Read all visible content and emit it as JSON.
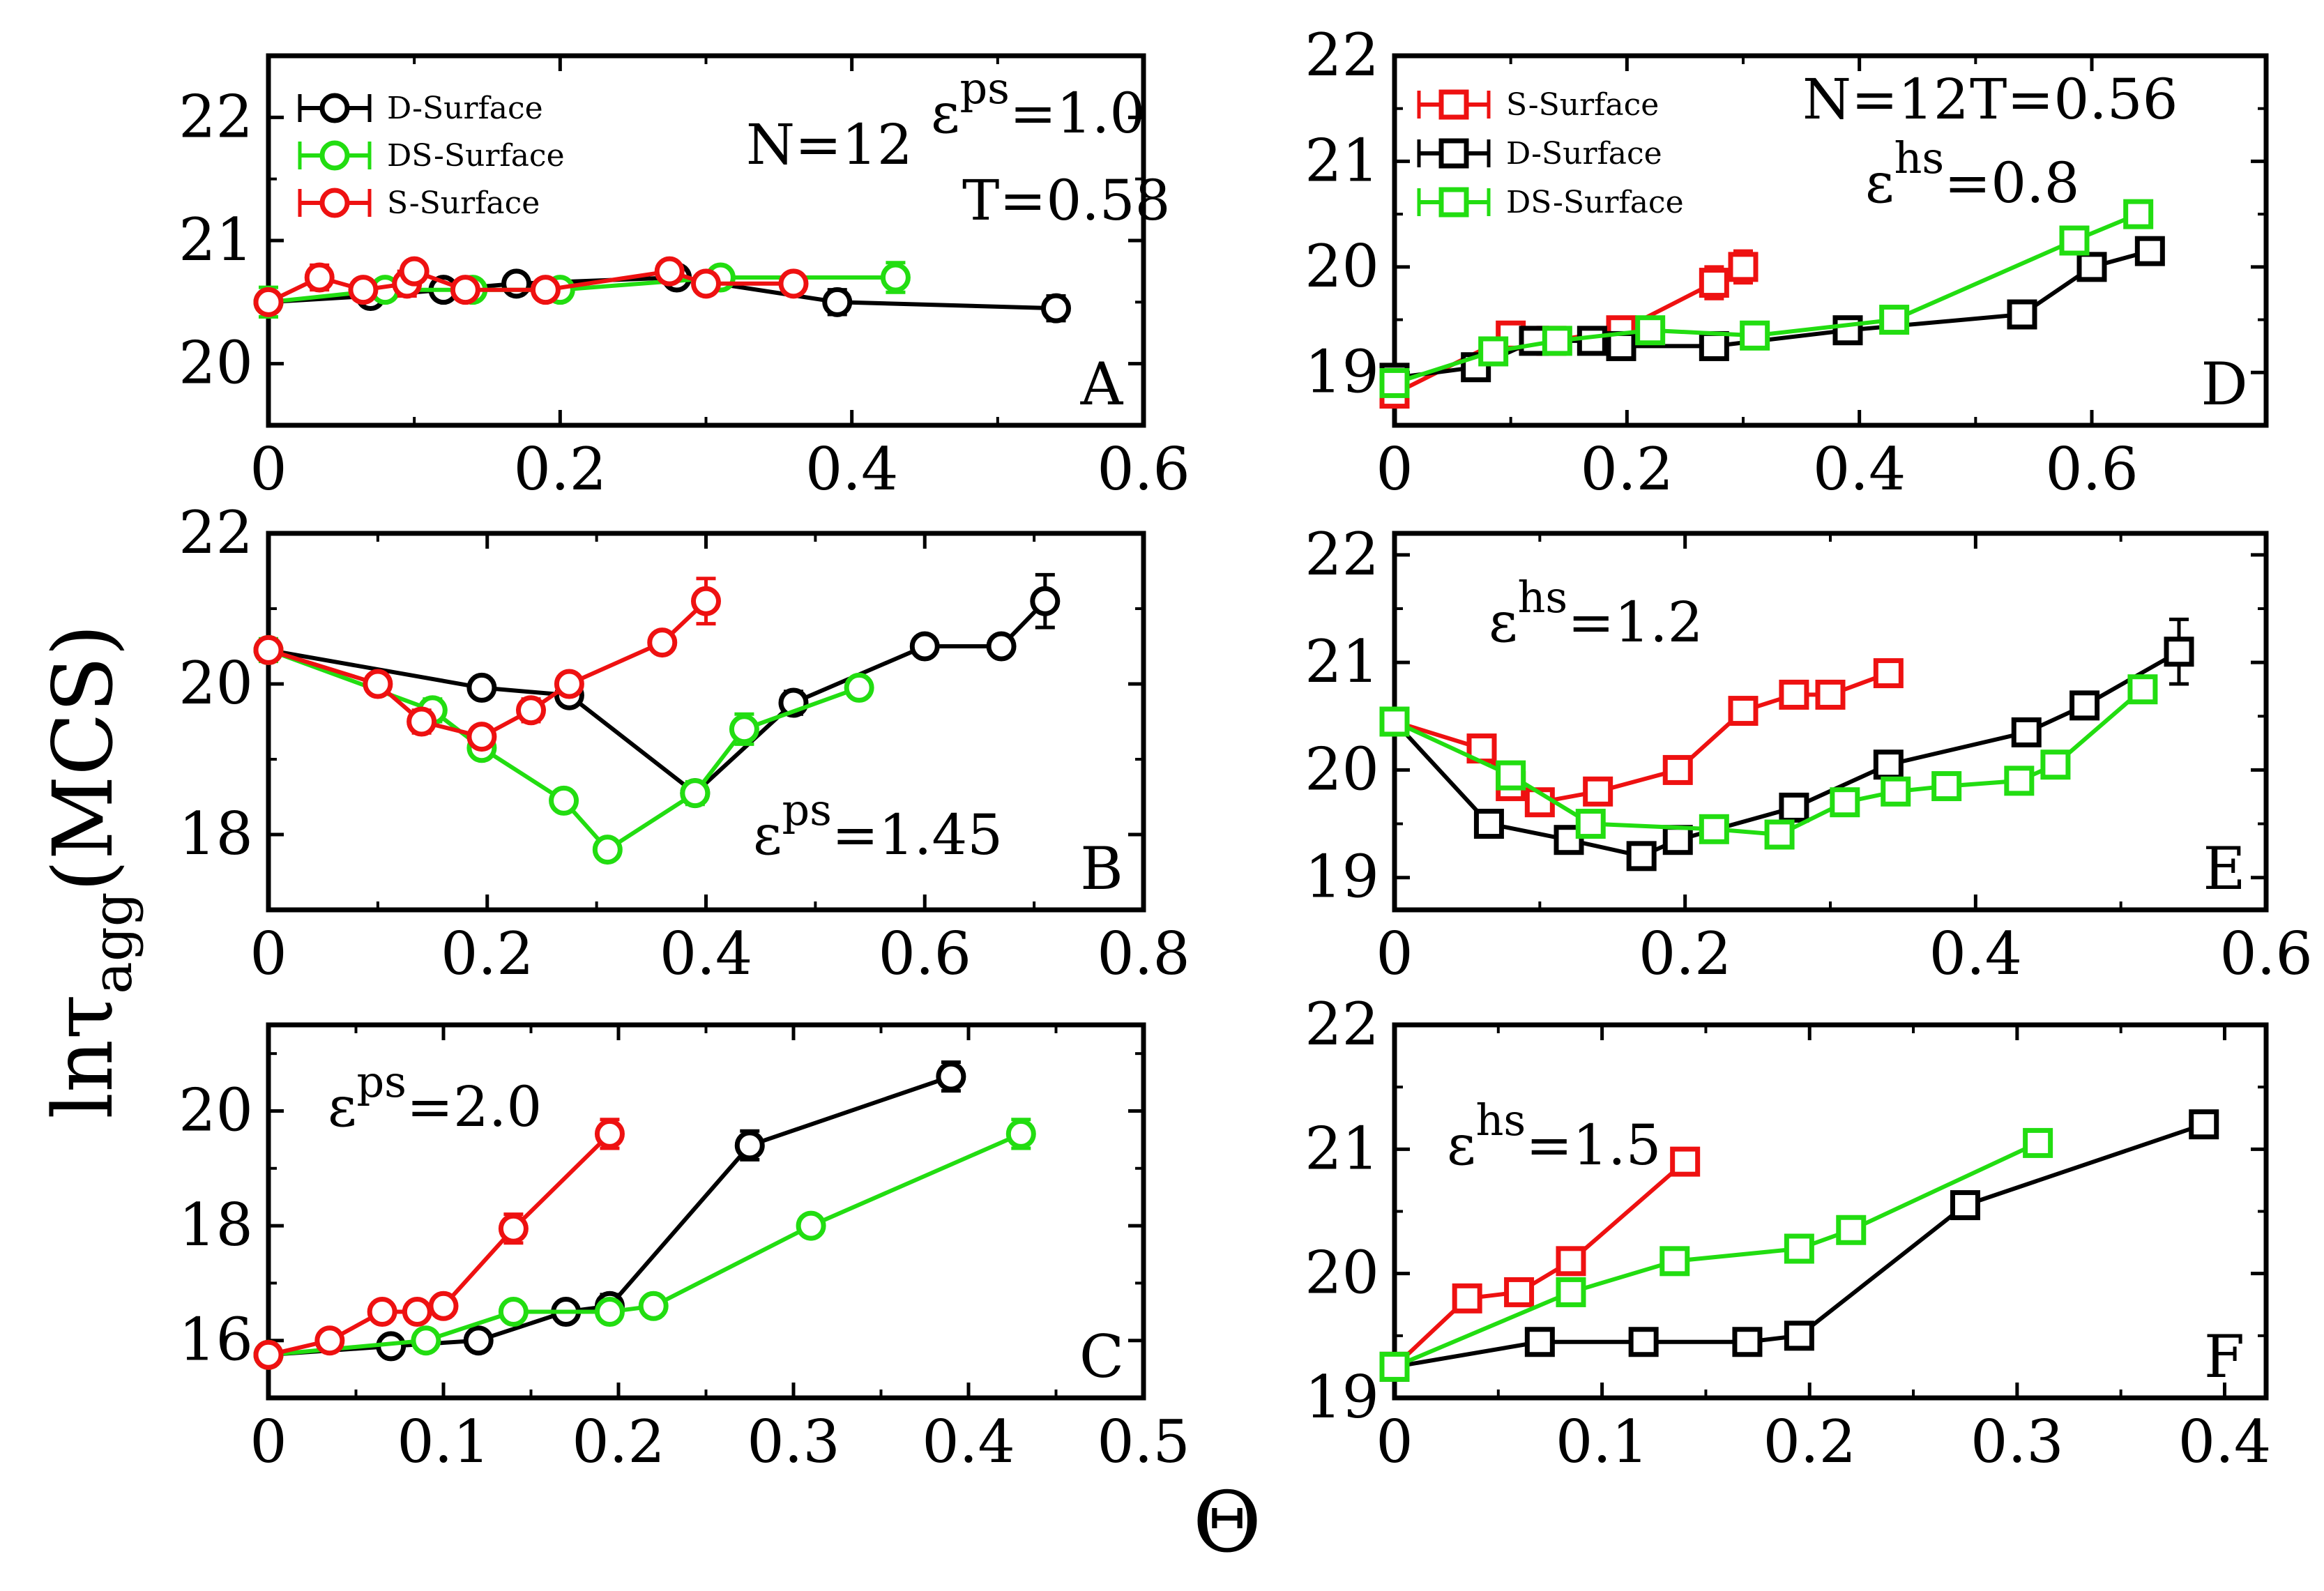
{
  "figure": {
    "y_label_main": "lnτ",
    "y_label_sub": "agg",
    "y_label_unit": "(MCS)",
    "x_label": "Θ"
  },
  "chart_data": [
    {
      "type": "line",
      "panel": "A",
      "marker": "circle",
      "annotations": [
        "N=12",
        "ε^ps=1.0",
        "T=0.58"
      ],
      "xlim": [
        0,
        0.6
      ],
      "ylim": [
        19.5,
        22.5
      ],
      "xticks": [
        0,
        0.2,
        0.4,
        0.6
      ],
      "yticks": [
        20,
        21,
        22
      ],
      "xtick_labels": [
        "0",
        "0.2",
        "0.4",
        "0.6"
      ],
      "ytick_labels": [
        "20",
        "21",
        "22"
      ],
      "legend": [
        "D-Surface",
        "DS-Surface",
        "S-Surface"
      ],
      "series": [
        {
          "name": "D-Surface",
          "color": "#000000",
          "x": [
            0,
            0.07,
            0.12,
            0.17,
            0.28,
            0.39,
            0.54
          ],
          "y": [
            20.5,
            20.55,
            20.6,
            20.65,
            20.7,
            20.5,
            20.45
          ],
          "err": [
            0.08,
            0.08,
            0.08,
            0.08,
            0.08,
            0.1,
            0.1
          ]
        },
        {
          "name": "DS-Surface",
          "color": "#22dd11",
          "x": [
            0,
            0.08,
            0.14,
            0.2,
            0.31,
            0.43
          ],
          "y": [
            20.5,
            20.6,
            20.6,
            20.6,
            20.7,
            20.7
          ],
          "err": [
            0.12,
            0.08,
            0.08,
            0.08,
            0.08,
            0.12
          ]
        },
        {
          "name": "S-Surface",
          "color": "#ee1111",
          "x": [
            0,
            0.035,
            0.065,
            0.095,
            0.1,
            0.135,
            0.19,
            0.275,
            0.3,
            0.36
          ],
          "y": [
            20.5,
            20.7,
            20.6,
            20.65,
            20.75,
            20.6,
            20.6,
            20.75,
            20.65,
            20.65
          ],
          "err": [
            0.08,
            0.1,
            0.08,
            0.1,
            0.08,
            0.08,
            0.08,
            0.08,
            0.08,
            0.08
          ]
        }
      ]
    },
    {
      "type": "line",
      "panel": "B",
      "marker": "circle",
      "annotations": [
        "ε^ps=1.45"
      ],
      "xlim": [
        0,
        0.8
      ],
      "ylim": [
        17,
        22
      ],
      "xticks": [
        0,
        0.2,
        0.4,
        0.6,
        0.8
      ],
      "yticks": [
        18,
        20,
        22
      ],
      "xtick_labels": [
        "0",
        "0.2",
        "0.4",
        "0.6",
        "0.8"
      ],
      "ytick_labels": [
        "18",
        "20",
        "22"
      ],
      "series": [
        {
          "name": "D-Surface",
          "color": "#000000",
          "x": [
            0,
            0.195,
            0.275,
            0.39,
            0.48,
            0.6,
            0.67,
            0.71
          ],
          "y": [
            20.45,
            19.95,
            19.85,
            18.55,
            19.75,
            20.5,
            20.5,
            21.1
          ],
          "err": [
            0.12,
            0.12,
            0.12,
            0.12,
            0.15,
            0.12,
            0.12,
            0.35
          ]
        },
        {
          "name": "DS-Surface",
          "color": "#22dd11",
          "x": [
            0,
            0.15,
            0.195,
            0.27,
            0.31,
            0.39,
            0.435,
            0.54
          ],
          "y": [
            20.45,
            19.65,
            19.15,
            18.45,
            17.8,
            18.55,
            19.4,
            19.95
          ],
          "err": [
            0.15,
            0.15,
            0.12,
            0.12,
            0.12,
            0.15,
            0.2,
            0.12
          ]
        },
        {
          "name": "S-Surface",
          "color": "#ee1111",
          "x": [
            0,
            0.1,
            0.14,
            0.195,
            0.24,
            0.275,
            0.36,
            0.4
          ],
          "y": [
            20.45,
            20.0,
            19.5,
            19.3,
            19.65,
            20.0,
            20.55,
            21.1
          ],
          "err": [
            0.12,
            0.12,
            0.15,
            0.12,
            0.15,
            0.12,
            0.12,
            0.3
          ]
        }
      ]
    },
    {
      "type": "line",
      "panel": "C",
      "marker": "circle",
      "annotations": [
        "ε^ps=2.0"
      ],
      "xlim": [
        0,
        0.5
      ],
      "ylim": [
        15,
        21.5
      ],
      "xticks": [
        0,
        0.1,
        0.2,
        0.3,
        0.4,
        0.5
      ],
      "yticks": [
        16,
        18,
        20
      ],
      "xtick_labels": [
        "0",
        "0.1",
        "0.2",
        "0.3",
        "0.4",
        "0.5"
      ],
      "ytick_labels": [
        "16",
        "18",
        "20"
      ],
      "series": [
        {
          "name": "D-Surface",
          "color": "#000000",
          "x": [
            0,
            0.07,
            0.12,
            0.17,
            0.195,
            0.275,
            0.39
          ],
          "y": [
            15.75,
            15.9,
            16.0,
            16.5,
            16.6,
            19.4,
            20.6
          ],
          "err": [
            0.15,
            0.15,
            0.15,
            0.15,
            0.2,
            0.25,
            0.25
          ]
        },
        {
          "name": "DS-Surface",
          "color": "#22dd11",
          "x": [
            0,
            0.09,
            0.14,
            0.195,
            0.22,
            0.31,
            0.43
          ],
          "y": [
            15.75,
            16.0,
            16.5,
            16.5,
            16.6,
            18.0,
            19.6
          ],
          "err": [
            0.15,
            0.15,
            0.15,
            0.15,
            0.15,
            0.15,
            0.25
          ]
        },
        {
          "name": "S-Surface",
          "color": "#ee1111",
          "x": [
            0,
            0.035,
            0.065,
            0.085,
            0.1,
            0.14,
            0.195
          ],
          "y": [
            15.75,
            16.0,
            16.5,
            16.5,
            16.6,
            17.95,
            19.6
          ],
          "err": [
            0.15,
            0.15,
            0.15,
            0.15,
            0.15,
            0.25,
            0.25
          ]
        }
      ]
    },
    {
      "type": "line",
      "panel": "D",
      "marker": "square",
      "annotations": [
        "N=12",
        "T=0.56",
        "ε^hs=0.8"
      ],
      "xlim": [
        0,
        0.75
      ],
      "ylim": [
        18.5,
        22
      ],
      "xticks": [
        0,
        0.2,
        0.4,
        0.6
      ],
      "yticks": [
        19,
        20,
        21,
        22
      ],
      "xtick_labels": [
        "0",
        "0.2",
        "0.4",
        "0.6"
      ],
      "ytick_labels": [
        "19",
        "20",
        "21",
        "22"
      ],
      "legend": [
        "S-Surface",
        "D-Surface",
        "DS-Surface"
      ],
      "series": [
        {
          "name": "S-Surface",
          "color": "#ee1111",
          "x": [
            0,
            0.1,
            0.135,
            0.195,
            0.275,
            0.3
          ],
          "y": [
            18.8,
            19.35,
            19.3,
            19.4,
            19.85,
            20.0
          ],
          "err": [
            0.1,
            0.1,
            0.1,
            0.1,
            0.15,
            0.15
          ]
        },
        {
          "name": "D-Surface",
          "color": "#000000",
          "x": [
            0,
            0.07,
            0.12,
            0.17,
            0.195,
            0.275,
            0.39,
            0.54,
            0.6,
            0.65
          ],
          "y": [
            18.95,
            19.05,
            19.3,
            19.3,
            19.25,
            19.25,
            19.4,
            19.55,
            20.0,
            20.15
          ],
          "err": [
            0.1,
            0.1,
            0.1,
            0.1,
            0.1,
            0.1,
            0.1,
            0.1,
            0.1,
            0.1
          ]
        },
        {
          "name": "DS-Surface",
          "color": "#22dd11",
          "x": [
            0,
            0.085,
            0.14,
            0.22,
            0.31,
            0.43,
            0.585,
            0.64
          ],
          "y": [
            18.9,
            19.2,
            19.3,
            19.4,
            19.35,
            19.5,
            20.25,
            20.5
          ],
          "err": [
            0.1,
            0.1,
            0.1,
            0.1,
            0.1,
            0.1,
            0.1,
            0.1
          ]
        }
      ]
    },
    {
      "type": "line",
      "panel": "E",
      "marker": "square",
      "annotations": [
        "ε^hs=1.2"
      ],
      "xlim": [
        0,
        0.6
      ],
      "ylim": [
        18.7,
        22.2
      ],
      "xticks": [
        0,
        0.2,
        0.4,
        0.6
      ],
      "yticks": [
        19,
        20,
        21,
        22
      ],
      "xtick_labels": [
        "0",
        "0.2",
        "0.4",
        "0.6"
      ],
      "ytick_labels": [
        "19",
        "20",
        "21",
        "22"
      ],
      "series": [
        {
          "name": "S-Surface",
          "color": "#ee1111",
          "x": [
            0,
            0.06,
            0.08,
            0.1,
            0.14,
            0.195,
            0.24,
            0.275,
            0.3,
            0.34
          ],
          "y": [
            20.45,
            20.2,
            19.85,
            19.7,
            19.8,
            20.0,
            20.55,
            20.7,
            20.7,
            20.9
          ],
          "err": [
            0.1,
            0.1,
            0.1,
            0.1,
            0.1,
            0.1,
            0.1,
            0.1,
            0.1,
            0.1
          ]
        },
        {
          "name": "D-Surface",
          "color": "#000000",
          "x": [
            0,
            0.065,
            0.12,
            0.17,
            0.195,
            0.275,
            0.34,
            0.435,
            0.475,
            0.54
          ],
          "y": [
            20.45,
            19.5,
            19.35,
            19.2,
            19.35,
            19.65,
            20.05,
            20.35,
            20.6,
            21.1
          ],
          "err": [
            0.1,
            0.1,
            0.1,
            0.1,
            0.1,
            0.1,
            0.1,
            0.1,
            0.1,
            0.3
          ]
        },
        {
          "name": "DS-Surface",
          "color": "#22dd11",
          "x": [
            0,
            0.08,
            0.135,
            0.22,
            0.265,
            0.31,
            0.345,
            0.38,
            0.43,
            0.455,
            0.515
          ],
          "y": [
            20.45,
            19.95,
            19.5,
            19.45,
            19.4,
            19.7,
            19.8,
            19.85,
            19.9,
            20.05,
            20.75
          ],
          "err": [
            0.1,
            0.1,
            0.1,
            0.1,
            0.1,
            0.1,
            0.1,
            0.1,
            0.1,
            0.1,
            0.1
          ]
        }
      ]
    },
    {
      "type": "line",
      "panel": "F",
      "marker": "square",
      "annotations": [
        "ε^hs=1.5"
      ],
      "xlim": [
        0,
        0.42
      ],
      "ylim": [
        19,
        22
      ],
      "xticks": [
        0,
        0.1,
        0.2,
        0.3,
        0.4
      ],
      "yticks": [
        19,
        20,
        21,
        22
      ],
      "xtick_labels": [
        "0",
        "0.1",
        "0.2",
        "0.3",
        "0.4"
      ],
      "ytick_labels": [
        "19",
        "20",
        "21",
        "22"
      ],
      "series": [
        {
          "name": "S-Surface",
          "color": "#ee1111",
          "x": [
            0,
            0.035,
            0.06,
            0.085,
            0.14
          ],
          "y": [
            19.25,
            19.8,
            19.85,
            20.1,
            20.9
          ],
          "err": [
            0.08,
            0.08,
            0.08,
            0.08,
            0.1
          ]
        },
        {
          "name": "D-Surface",
          "color": "#000000",
          "x": [
            0,
            0.07,
            0.12,
            0.17,
            0.195,
            0.275,
            0.39
          ],
          "y": [
            19.25,
            19.45,
            19.45,
            19.45,
            19.5,
            20.55,
            21.2
          ],
          "err": [
            0.08,
            0.08,
            0.08,
            0.08,
            0.08,
            0.08,
            0.08
          ]
        },
        {
          "name": "DS-Surface",
          "color": "#22dd11",
          "x": [
            0,
            0.085,
            0.135,
            0.195,
            0.22,
            0.31
          ],
          "y": [
            19.25,
            19.85,
            20.1,
            20.2,
            20.35,
            21.05
          ],
          "err": [
            0.08,
            0.08,
            0.08,
            0.08,
            0.08,
            0.1
          ]
        }
      ]
    }
  ]
}
